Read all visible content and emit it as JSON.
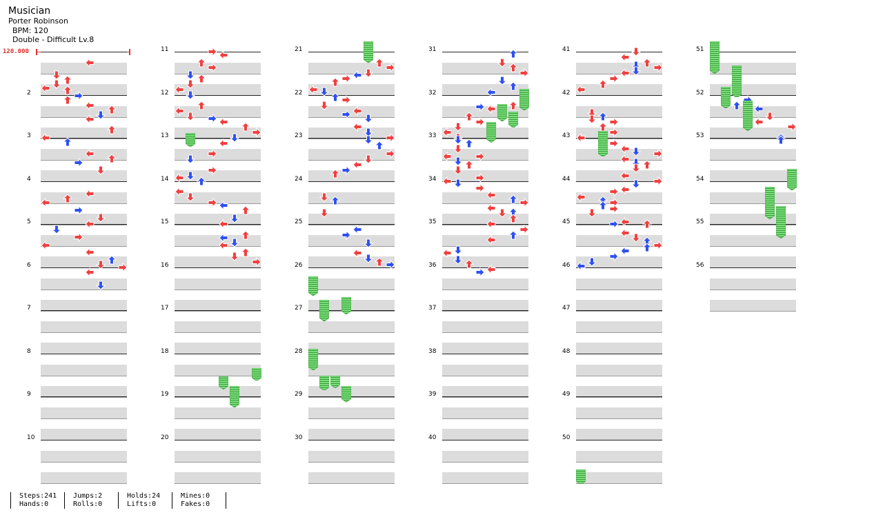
{
  "song": {
    "title": "Musician",
    "artist": "Porter Robinson",
    "bpm_text": "BPM: 120",
    "chart": "Double - Difficult Lv.8"
  },
  "bpm_marker": "120.000",
  "colors": {
    "red": "#f04040",
    "blue": "#3050f0",
    "hold": "#7be07b",
    "stripe": "#dcdcdc"
  },
  "columns": [
    {
      "measures": [
        "",
        "2",
        "3",
        "4",
        "5",
        "6",
        "7",
        "8",
        "9",
        "10"
      ]
    },
    {
      "measures": [
        "11",
        "12",
        "13",
        "14",
        "15",
        "16",
        "17",
        "18",
        "19",
        "20"
      ]
    },
    {
      "measures": [
        "21",
        "22",
        "23",
        "24",
        "25",
        "26",
        "27",
        "28",
        "29",
        "30"
      ]
    },
    {
      "measures": [
        "31",
        "32",
        "33",
        "34",
        "35",
        "36",
        "37",
        "38",
        "39",
        "40"
      ]
    },
    {
      "measures": [
        "41",
        "42",
        "43",
        "44",
        "45",
        "46",
        "47",
        "48",
        "49",
        "50"
      ]
    },
    {
      "measures": [
        "51",
        "52",
        "53",
        "54",
        "55",
        "56"
      ]
    }
  ],
  "stats": {
    "steps": "Steps:241",
    "hands": "Hands:0",
    "jumps": "Jumps:2",
    "rolls": "Rolls:0",
    "holds": "Holds:24",
    "lifts": "Lifts:0",
    "mines": "Mines:0",
    "fakes": "Fakes:0"
  }
}
